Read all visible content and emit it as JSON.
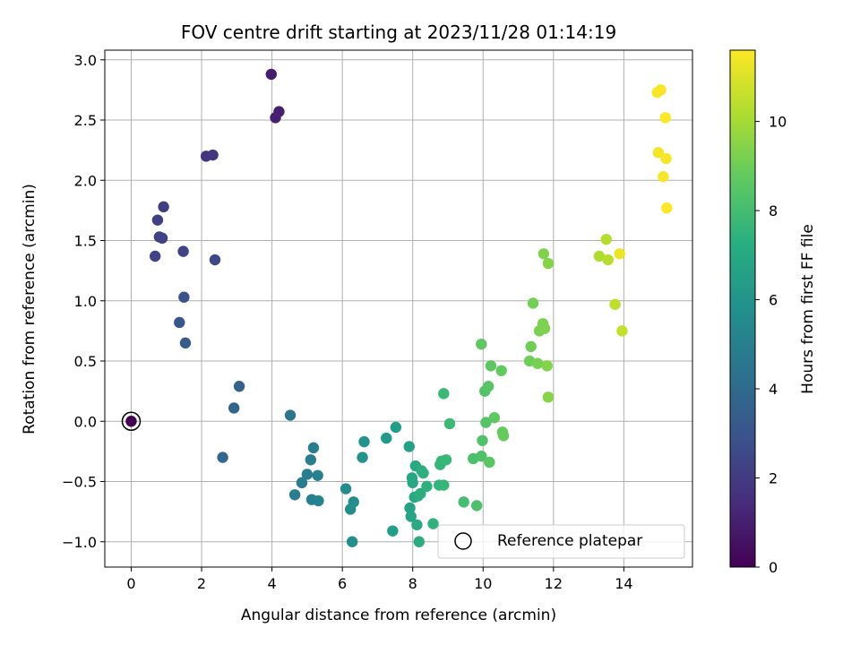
{
  "chart_data": {
    "type": "scatter",
    "title": "FOV centre drift starting at 2023/11/28 01:14:19",
    "xlabel": "Angular distance from reference (arcmin)",
    "ylabel": "Rotation from reference (arcmin)",
    "xlim": [
      -0.75,
      15.95
    ],
    "ylim": [
      -1.21,
      3.08
    ],
    "xticks": [
      0,
      2,
      4,
      6,
      8,
      10,
      12,
      14
    ],
    "yticks": [
      -1.0,
      -0.5,
      0.0,
      0.5,
      1.0,
      1.5,
      2.0,
      2.5,
      3.0
    ],
    "xtick_labels": [
      "0",
      "2",
      "4",
      "6",
      "8",
      "10",
      "12",
      "14"
    ],
    "ytick_labels": [
      "−1.0",
      "−0.5",
      "0.0",
      "0.5",
      "1.0",
      "1.5",
      "2.0",
      "2.5",
      "3.0"
    ],
    "grid": true,
    "colormap": "viridis",
    "colorbar": {
      "label": "Hours from first FF file",
      "range": [
        0,
        11.6
      ],
      "ticks": [
        0,
        2,
        4,
        6,
        8,
        10
      ],
      "tick_labels": [
        "0",
        "2",
        "4",
        "6",
        "8",
        "10"
      ]
    },
    "legend": {
      "placement": "lower-right",
      "entries": [
        {
          "label": "Reference platepar",
          "marker": "hollow-circle"
        }
      ]
    },
    "reference_point": {
      "x": 0,
      "y": 0,
      "hours": 0
    },
    "series": [
      {
        "points": [
          {
            "x": 3.98,
            "y": 2.88,
            "hours": 0.9
          },
          {
            "x": 4.1,
            "y": 2.52,
            "hours": 1.0
          },
          {
            "x": 4.2,
            "y": 2.57,
            "hours": 1.05
          },
          {
            "x": 2.13,
            "y": 2.2,
            "hours": 1.8
          },
          {
            "x": 2.32,
            "y": 2.21,
            "hours": 1.85
          },
          {
            "x": 0.92,
            "y": 1.78,
            "hours": 2.1
          },
          {
            "x": 0.75,
            "y": 1.67,
            "hours": 2.15
          },
          {
            "x": 0.8,
            "y": 1.53,
            "hours": 2.2
          },
          {
            "x": 0.88,
            "y": 1.52,
            "hours": 2.25
          },
          {
            "x": 0.68,
            "y": 1.37,
            "hours": 2.3
          },
          {
            "x": 1.48,
            "y": 1.41,
            "hours": 2.4
          },
          {
            "x": 2.38,
            "y": 1.34,
            "hours": 2.45
          },
          {
            "x": 1.5,
            "y": 1.03,
            "hours": 2.9
          },
          {
            "x": 1.37,
            "y": 0.82,
            "hours": 3.1
          },
          {
            "x": 1.54,
            "y": 0.65,
            "hours": 3.3
          },
          {
            "x": 3.07,
            "y": 0.29,
            "hours": 3.6
          },
          {
            "x": 2.92,
            "y": 0.11,
            "hours": 3.7
          },
          {
            "x": 2.6,
            "y": -0.3,
            "hours": 3.9
          },
          {
            "x": 4.52,
            "y": 0.05,
            "hours": 4.5
          },
          {
            "x": 4.65,
            "y": -0.61,
            "hours": 4.8
          },
          {
            "x": 4.85,
            "y": -0.51,
            "hours": 4.85
          },
          {
            "x": 5.0,
            "y": -0.44,
            "hours": 4.9
          },
          {
            "x": 5.1,
            "y": -0.32,
            "hours": 4.95
          },
          {
            "x": 5.18,
            "y": -0.22,
            "hours": 5.0
          },
          {
            "x": 5.13,
            "y": -0.65,
            "hours": 5.05
          },
          {
            "x": 5.3,
            "y": -0.45,
            "hours": 5.1
          },
          {
            "x": 5.32,
            "y": -0.66,
            "hours": 5.15
          },
          {
            "x": 6.1,
            "y": -0.56,
            "hours": 5.6
          },
          {
            "x": 6.23,
            "y": -0.73,
            "hours": 5.65
          },
          {
            "x": 6.32,
            "y": -0.67,
            "hours": 5.7
          },
          {
            "x": 6.28,
            "y": -1.0,
            "hours": 5.75
          },
          {
            "x": 6.57,
            "y": -0.3,
            "hours": 5.9
          },
          {
            "x": 6.62,
            "y": -0.17,
            "hours": 5.95
          },
          {
            "x": 7.25,
            "y": -0.14,
            "hours": 6.3
          },
          {
            "x": 7.52,
            "y": -0.05,
            "hours": 6.4
          },
          {
            "x": 7.43,
            "y": -0.91,
            "hours": 6.5
          },
          {
            "x": 7.9,
            "y": -0.21,
            "hours": 6.7
          },
          {
            "x": 7.92,
            "y": -0.72,
            "hours": 6.75
          },
          {
            "x": 7.95,
            "y": -0.79,
            "hours": 6.8
          },
          {
            "x": 7.98,
            "y": -0.47,
            "hours": 6.85
          },
          {
            "x": 8.0,
            "y": -0.51,
            "hours": 6.9
          },
          {
            "x": 8.05,
            "y": -0.63,
            "hours": 6.95
          },
          {
            "x": 8.08,
            "y": -0.37,
            "hours": 7.0
          },
          {
            "x": 8.12,
            "y": -0.86,
            "hours": 7.05
          },
          {
            "x": 8.15,
            "y": -0.62,
            "hours": 7.1
          },
          {
            "x": 8.18,
            "y": -1.0,
            "hours": 7.15
          },
          {
            "x": 8.22,
            "y": -0.6,
            "hours": 7.2
          },
          {
            "x": 8.25,
            "y": -0.41,
            "hours": 7.25
          },
          {
            "x": 8.3,
            "y": -0.43,
            "hours": 7.3
          },
          {
            "x": 8.4,
            "y": -0.54,
            "hours": 7.4
          },
          {
            "x": 8.58,
            "y": -0.85,
            "hours": 7.5
          },
          {
            "x": 8.75,
            "y": -0.53,
            "hours": 7.6
          },
          {
            "x": 8.78,
            "y": -0.36,
            "hours": 7.65
          },
          {
            "x": 8.82,
            "y": -0.33,
            "hours": 7.7
          },
          {
            "x": 8.88,
            "y": -0.53,
            "hours": 7.75
          },
          {
            "x": 8.95,
            "y": -0.32,
            "hours": 7.8
          },
          {
            "x": 8.88,
            "y": 0.23,
            "hours": 7.85
          },
          {
            "x": 9.05,
            "y": -0.02,
            "hours": 7.9
          },
          {
            "x": 9.45,
            "y": -0.67,
            "hours": 8.1
          },
          {
            "x": 9.72,
            "y": -0.31,
            "hours": 8.2
          },
          {
            "x": 9.82,
            "y": -0.7,
            "hours": 8.25
          },
          {
            "x": 9.95,
            "y": -0.29,
            "hours": 8.3
          },
          {
            "x": 9.98,
            "y": -0.16,
            "hours": 8.35
          },
          {
            "x": 10.05,
            "y": 0.25,
            "hours": 8.4
          },
          {
            "x": 10.08,
            "y": -0.01,
            "hours": 8.45
          },
          {
            "x": 10.15,
            "y": 0.29,
            "hours": 8.5
          },
          {
            "x": 10.18,
            "y": -0.34,
            "hours": 8.55
          },
          {
            "x": 10.22,
            "y": 0.46,
            "hours": 8.6
          },
          {
            "x": 10.32,
            "y": 0.03,
            "hours": 8.65
          },
          {
            "x": 9.95,
            "y": 0.64,
            "hours": 8.7
          },
          {
            "x": 10.52,
            "y": 0.42,
            "hours": 8.75
          },
          {
            "x": 10.55,
            "y": -0.09,
            "hours": 8.8
          },
          {
            "x": 10.58,
            "y": -0.12,
            "hours": 8.85
          },
          {
            "x": 11.32,
            "y": 0.5,
            "hours": 9.0
          },
          {
            "x": 11.36,
            "y": 0.62,
            "hours": 9.05
          },
          {
            "x": 11.42,
            "y": 0.98,
            "hours": 9.1
          },
          {
            "x": 11.55,
            "y": 0.48,
            "hours": 9.15
          },
          {
            "x": 11.6,
            "y": 0.75,
            "hours": 9.2
          },
          {
            "x": 11.7,
            "y": 0.81,
            "hours": 9.25
          },
          {
            "x": 11.75,
            "y": 0.77,
            "hours": 9.3
          },
          {
            "x": 11.72,
            "y": 1.39,
            "hours": 9.35
          },
          {
            "x": 11.82,
            "y": 0.46,
            "hours": 9.4
          },
          {
            "x": 11.85,
            "y": 1.31,
            "hours": 9.45
          },
          {
            "x": 11.85,
            "y": 0.2,
            "hours": 9.5
          },
          {
            "x": 13.3,
            "y": 1.37,
            "hours": 10.2
          },
          {
            "x": 13.5,
            "y": 1.51,
            "hours": 10.3
          },
          {
            "x": 13.55,
            "y": 1.34,
            "hours": 10.35
          },
          {
            "x": 13.75,
            "y": 0.97,
            "hours": 10.45
          },
          {
            "x": 13.88,
            "y": 1.39,
            "hours": 11.3
          },
          {
            "x": 13.95,
            "y": 0.75,
            "hours": 10.6
          },
          {
            "x": 14.95,
            "y": 2.73,
            "hours": 11.45
          },
          {
            "x": 15.05,
            "y": 2.75,
            "hours": 11.5
          },
          {
            "x": 14.98,
            "y": 2.23,
            "hours": 11.4
          },
          {
            "x": 15.18,
            "y": 2.52,
            "hours": 11.55
          },
          {
            "x": 15.2,
            "y": 2.18,
            "hours": 11.5
          },
          {
            "x": 15.12,
            "y": 2.03,
            "hours": 11.45
          },
          {
            "x": 15.22,
            "y": 1.77,
            "hours": 11.55
          }
        ]
      }
    ]
  }
}
